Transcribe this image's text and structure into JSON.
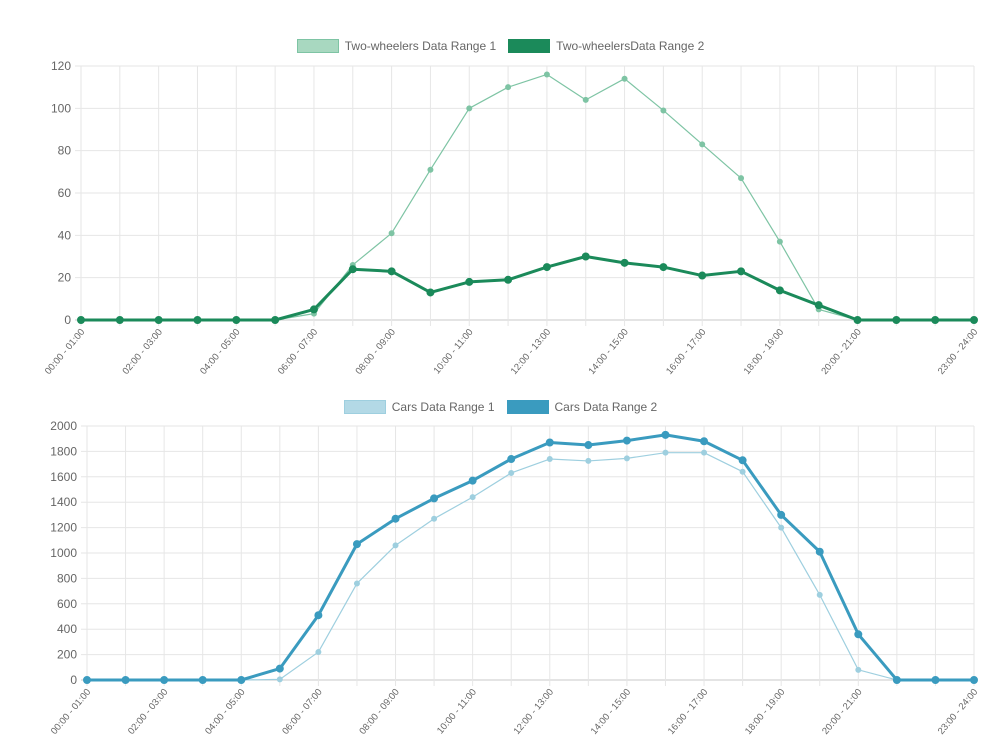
{
  "chart_data": [
    {
      "type": "line",
      "categories": [
        "00:00 - 01:00",
        "",
        "02:00 - 03:00",
        "",
        "04:00 - 05:00",
        "",
        "06:00 - 07:00",
        "",
        "08:00 - 09:00",
        "",
        "10:00 - 11:00",
        "",
        "12:00 - 13:00",
        "",
        "14:00 - 15:00",
        "",
        "16:00 - 17:00",
        "",
        "18:00 - 19:00",
        "",
        "20:00 - 21:00",
        "",
        "",
        "23:00 - 24:00"
      ],
      "ylim": [
        0,
        120
      ],
      "yticks": [
        0,
        20,
        40,
        60,
        80,
        100,
        120
      ],
      "grid": true,
      "legend_position": "top-center",
      "series": [
        {
          "name": "Two-wheelers Data Range 1",
          "color": "#7ec4a4",
          "fill": "#a8d8c0",
          "values": [
            0,
            0,
            0,
            0,
            0,
            0,
            3,
            26,
            41,
            71,
            100,
            110,
            116,
            104,
            114,
            99,
            83,
            67,
            37,
            5,
            0,
            0,
            0,
            0
          ]
        },
        {
          "name": "Two-wheelersData Range 2",
          "color": "#1b8a5a",
          "fill": "#1b8a5a",
          "values": [
            0,
            0,
            0,
            0,
            0,
            0,
            5,
            24,
            23,
            13,
            18,
            19,
            25,
            30,
            27,
            25,
            21,
            23,
            14,
            7,
            0,
            0,
            0,
            0
          ]
        }
      ]
    },
    {
      "type": "line",
      "categories": [
        "00:00 - 01:00",
        "",
        "02:00 - 03:00",
        "",
        "04:00 - 05:00",
        "",
        "06:00 - 07:00",
        "",
        "08:00 - 09:00",
        "",
        "10:00 - 11:00",
        "",
        "12:00 - 13:00",
        "",
        "14:00 - 15:00",
        "",
        "16:00 - 17:00",
        "",
        "18:00 - 19:00",
        "",
        "20:00 - 21:00",
        "",
        "",
        "23:00 - 24:00"
      ],
      "ylim": [
        0,
        2000
      ],
      "yticks": [
        0,
        200,
        400,
        600,
        800,
        1000,
        1200,
        1400,
        1600,
        1800,
        2000
      ],
      "grid": true,
      "legend_position": "top-center",
      "series": [
        {
          "name": "Cars Data Range 1",
          "color": "#9ecfdf",
          "fill": "#b3d9e6",
          "values": [
            0,
            0,
            0,
            0,
            0,
            5,
            220,
            760,
            1060,
            1270,
            1440,
            1630,
            1740,
            1725,
            1745,
            1790,
            1790,
            1640,
            1200,
            670,
            80,
            0,
            0,
            0
          ]
        },
        {
          "name": "Cars Data Range 2",
          "color": "#3a9bbf",
          "fill": "#3a9bbf",
          "values": [
            0,
            0,
            0,
            0,
            0,
            90,
            510,
            1070,
            1270,
            1430,
            1570,
            1740,
            1870,
            1850,
            1885,
            1930,
            1880,
            1730,
            1300,
            1010,
            360,
            0,
            0,
            0
          ]
        }
      ]
    }
  ]
}
